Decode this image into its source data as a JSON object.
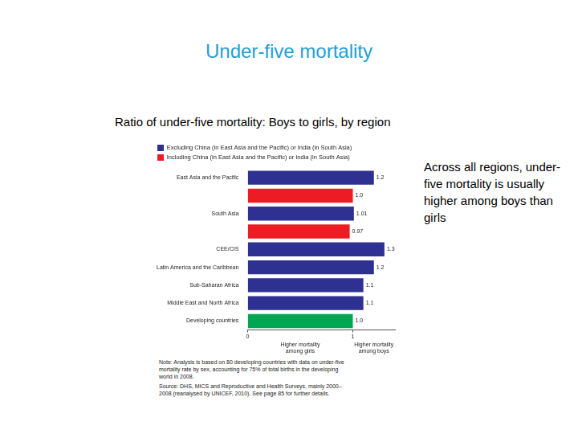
{
  "page": {
    "title": "Under-five mortality",
    "side_text": "Across all regions, under-five mortality is usually higher among boys than girls"
  },
  "chart_data": {
    "type": "bar",
    "orientation": "horizontal",
    "title": "Ratio of under-five mortality: Boys to girls, by region",
    "categories": [
      "East Asia and the Pacific",
      null,
      "South Asia",
      null,
      "CEE/CIS",
      "Latin America and the Caribbean",
      "Sub-Saharan Africa",
      "Middle East and North Africa",
      "Developing countries"
    ],
    "series": [
      {
        "name": "Excluding China (in East Asia and the Pacific) or India (in South Asia)",
        "color": "#2e3192",
        "colors": [
          "#2e3192",
          "#2e3192",
          "#2e3192",
          "#2e3192",
          "#2e3192",
          "#2e3192",
          "#2e3192",
          "#2e3192",
          "#00a651"
        ],
        "values": [
          1.2,
          null,
          1.01,
          null,
          1.3,
          1.2,
          1.1,
          1.1,
          1.0
        ],
        "value_labels": [
          "1.2",
          null,
          "1.01",
          null,
          "1.3",
          "1.2",
          "1.1",
          "1.1",
          "1.0"
        ]
      },
      {
        "name": "Including China (in East Asia and the Pacific) or India (in South Asia)",
        "color": "#ed1c24",
        "values": [
          null,
          1.0,
          null,
          0.97,
          null,
          null,
          null,
          null,
          null
        ],
        "value_labels": [
          null,
          "1.0",
          null,
          "0.97",
          null,
          null,
          null,
          null,
          null
        ]
      }
    ],
    "xlim": [
      0,
      1.4
    ],
    "xticks": [
      0,
      1
    ],
    "grid": false,
    "legend": "top",
    "data_labels": true,
    "annotations": [
      "Higher mortality among girls",
      "Higher mortality among boys"
    ],
    "notes": [
      "Note: Analysis is based on 80 developing countries with data on under-five mortality rate by sex, accounting for 75% of total births in the developing world in 2008.",
      "Source: DHS, MICS and Reproductive and Health Surveys, mainly 2000–2008 (reanalysed by UNICEF, 2010). See page 85 for further details."
    ]
  }
}
